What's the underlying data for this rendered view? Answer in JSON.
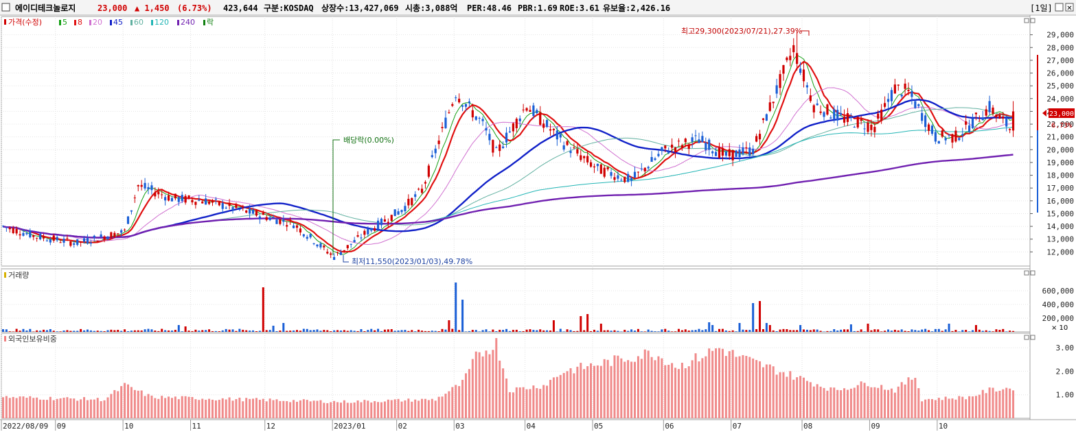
{
  "header": {
    "name": "에이디테크놀로지",
    "price": "23,000",
    "change": "▲ 1,450",
    "change_pct": "(6.73%)",
    "volume": "423,644",
    "market": "구분:KOSDAQ",
    "shares": "상장수:13,427,069",
    "mcap": "시총:3,088억",
    "per": "PER:48.46",
    "pbr": "PBR:1.69",
    "roe": "ROE:3.61",
    "reserve": "유보율:2,426.16",
    "period": "[1일]",
    "colors": {
      "up": "#d00000",
      "down": "#1a5fd6",
      "text": "#000000"
    }
  },
  "legend": {
    "price_label": "가격(수정)",
    "ma": [
      {
        "label": "5",
        "color": "#14a014"
      },
      {
        "label": "8",
        "color": "#e01010"
      },
      {
        "label": "20",
        "color": "#d070d0"
      },
      {
        "label": "45",
        "color": "#1020c8"
      },
      {
        "label": "60",
        "color": "#60b0a0"
      },
      {
        "label": "120",
        "color": "#20b4b4"
      },
      {
        "label": "240",
        "color": "#7020b0"
      }
    ],
    "event_label": "락",
    "volume_label": "거래량",
    "foreign_label": "외국인보유비중"
  },
  "annotations": {
    "high": "최고29,300(2023/07/21),27.39%",
    "low": "최저11,550(2023/01/03),49.78%",
    "dividend": "배당락(0.00%)",
    "current_price": "23,000",
    "current_pct": "6.73%",
    "volume_unit": "× 10"
  },
  "chart_data": [
    {
      "type": "candlestick",
      "title": "",
      "price_ylim": [
        11000,
        30000
      ],
      "price_ticks": [
        "29,000",
        "28,000",
        "27,000",
        "26,000",
        "25,000",
        "24,000",
        "23,000",
        "22,000",
        "21,000",
        "20,000",
        "19,000",
        "18,000",
        "17,000",
        "16,000",
        "15,000",
        "14,000",
        "13,000",
        "12,000"
      ],
      "x_ticks": [
        "2022/08/09",
        "09",
        "10",
        "11",
        "12",
        "2023/01",
        "02",
        "03",
        "04",
        "05",
        "06",
        "07",
        "08",
        "09",
        "10"
      ],
      "close_series": [
        {
          "date": "2022-08",
          "close": 14000
        },
        {
          "date": "2022-09",
          "close": 12800
        },
        {
          "date": "2022-10",
          "close": 17500
        },
        {
          "date": "2022-11",
          "close": 16300
        },
        {
          "date": "2022-12",
          "close": 14200
        },
        {
          "date": "2023-01",
          "close": 11600
        },
        {
          "date": "2023-02",
          "close": 15500
        },
        {
          "date": "2023-03",
          "close": 22500
        },
        {
          "date": "2023-04",
          "close": 22000
        },
        {
          "date": "2023-05",
          "close": 18500
        },
        {
          "date": "2023-06",
          "close": 20500
        },
        {
          "date": "2023-07",
          "close": 28000
        },
        {
          "date": "2023-08",
          "close": 23000
        },
        {
          "date": "2023-09",
          "close": 23500
        },
        {
          "date": "2023-10",
          "close": 23000
        }
      ],
      "last_close": 23000,
      "grid": true
    },
    {
      "type": "bar",
      "title": "거래량",
      "ylim": [
        0,
        800000
      ],
      "y_ticks": [
        "600,000",
        "400,000",
        "200,000"
      ],
      "unit": "× 10"
    },
    {
      "type": "bar",
      "title": "외국인보유비중",
      "ylim": [
        0,
        3.5
      ],
      "y_ticks": [
        "3.00",
        "2.00",
        "1.00"
      ]
    }
  ]
}
